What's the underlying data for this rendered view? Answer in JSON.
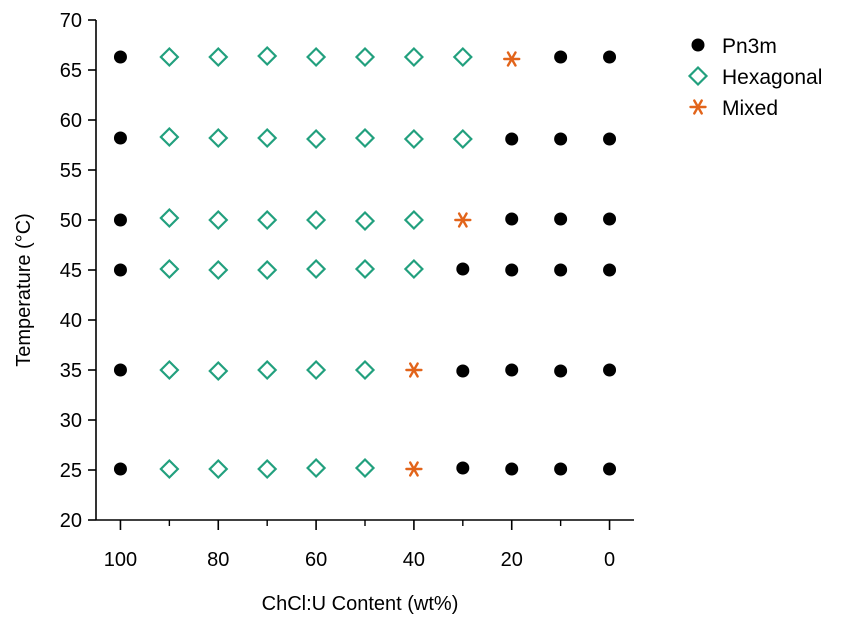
{
  "chart_data": {
    "type": "scatter",
    "title": "",
    "xlabel": "ChCl:U Content (wt%)",
    "ylabel": "Temperature (°C)",
    "xlim": [
      105,
      -5
    ],
    "ylim": [
      20,
      70
    ],
    "x_reversed": true,
    "x_ticks": [
      100,
      80,
      60,
      40,
      20,
      0
    ],
    "x_minor_ticks": [
      90,
      70,
      50,
      30,
      10
    ],
    "y_ticks": [
      20,
      25,
      30,
      35,
      40,
      45,
      50,
      55,
      60,
      65,
      70
    ],
    "grid": false,
    "legend_position": "top-right",
    "series": [
      {
        "name": "Pn3m",
        "marker": "filled-circle",
        "color": "#000000",
        "points": [
          {
            "x": 100,
            "y": 66.3
          },
          {
            "x": 10,
            "y": 66.3
          },
          {
            "x": 0,
            "y": 66.3
          },
          {
            "x": 100,
            "y": 58.2
          },
          {
            "x": 20,
            "y": 58.1
          },
          {
            "x": 10,
            "y": 58.1
          },
          {
            "x": 0,
            "y": 58.1
          },
          {
            "x": 100,
            "y": 50.0
          },
          {
            "x": 20,
            "y": 50.1
          },
          {
            "x": 10,
            "y": 50.1
          },
          {
            "x": 0,
            "y": 50.1
          },
          {
            "x": 100,
            "y": 45.0
          },
          {
            "x": 30,
            "y": 45.1
          },
          {
            "x": 20,
            "y": 45.0
          },
          {
            "x": 10,
            "y": 45.0
          },
          {
            "x": 0,
            "y": 45.0
          },
          {
            "x": 100,
            "y": 35.0
          },
          {
            "x": 30,
            "y": 34.9
          },
          {
            "x": 20,
            "y": 35.0
          },
          {
            "x": 10,
            "y": 34.9
          },
          {
            "x": 0,
            "y": 35.0
          },
          {
            "x": 100,
            "y": 25.1
          },
          {
            "x": 30,
            "y": 25.2
          },
          {
            "x": 20,
            "y": 25.1
          },
          {
            "x": 10,
            "y": 25.1
          },
          {
            "x": 0,
            "y": 25.1
          }
        ]
      },
      {
        "name": "Hexagonal",
        "marker": "open-diamond",
        "color": "#22A07E",
        "points": [
          {
            "x": 90,
            "y": 66.3
          },
          {
            "x": 80,
            "y": 66.3
          },
          {
            "x": 70,
            "y": 66.4
          },
          {
            "x": 60,
            "y": 66.3
          },
          {
            "x": 50,
            "y": 66.3
          },
          {
            "x": 40,
            "y": 66.3
          },
          {
            "x": 30,
            "y": 66.3
          },
          {
            "x": 90,
            "y": 58.3
          },
          {
            "x": 80,
            "y": 58.2
          },
          {
            "x": 70,
            "y": 58.2
          },
          {
            "x": 60,
            "y": 58.1
          },
          {
            "x": 50,
            "y": 58.2
          },
          {
            "x": 40,
            "y": 58.1
          },
          {
            "x": 30,
            "y": 58.1
          },
          {
            "x": 90,
            "y": 50.2
          },
          {
            "x": 80,
            "y": 50.0
          },
          {
            "x": 70,
            "y": 50.0
          },
          {
            "x": 60,
            "y": 50.0
          },
          {
            "x": 50,
            "y": 49.9
          },
          {
            "x": 40,
            "y": 50.0
          },
          {
            "x": 90,
            "y": 45.1
          },
          {
            "x": 80,
            "y": 45.0
          },
          {
            "x": 70,
            "y": 45.0
          },
          {
            "x": 60,
            "y": 45.1
          },
          {
            "x": 50,
            "y": 45.1
          },
          {
            "x": 40,
            "y": 45.1
          },
          {
            "x": 90,
            "y": 35.0
          },
          {
            "x": 80,
            "y": 34.9
          },
          {
            "x": 70,
            "y": 35.0
          },
          {
            "x": 60,
            "y": 35.0
          },
          {
            "x": 50,
            "y": 35.0
          },
          {
            "x": 90,
            "y": 25.1
          },
          {
            "x": 80,
            "y": 25.1
          },
          {
            "x": 70,
            "y": 25.1
          },
          {
            "x": 60,
            "y": 25.2
          },
          {
            "x": 50,
            "y": 25.2
          }
        ]
      },
      {
        "name": "Mixed",
        "marker": "asterisk",
        "color": "#E2641A",
        "points": [
          {
            "x": 20,
            "y": 66.1
          },
          {
            "x": 30,
            "y": 50.0
          },
          {
            "x": 40,
            "y": 35.0
          },
          {
            "x": 40,
            "y": 25.1
          }
        ]
      }
    ]
  }
}
